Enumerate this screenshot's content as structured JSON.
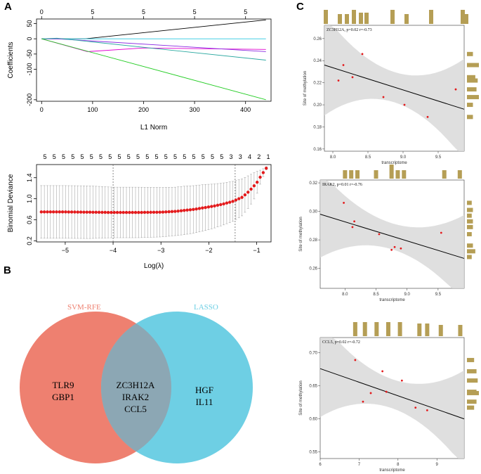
{
  "panels": {
    "A": "A",
    "B": "B",
    "C": "C"
  },
  "chart_data": [
    {
      "id": "lasso-coef",
      "type": "line",
      "title": "",
      "xlabel": "L1 Norm",
      "ylabel": "Coefficients",
      "xlim": [
        -10,
        450
      ],
      "ylim": [
        -205,
        65
      ],
      "x_ticks": [
        0,
        100,
        200,
        300,
        400
      ],
      "y_ticks": [
        -200,
        -100,
        -50,
        0,
        50
      ],
      "top_ticks": [
        {
          "x": 0,
          "label": "0"
        },
        {
          "x": 100,
          "label": "5"
        },
        {
          "x": 200,
          "label": "5"
        },
        {
          "x": 300,
          "label": "5"
        },
        {
          "x": 400,
          "label": "5"
        }
      ],
      "series": [
        {
          "name": "black",
          "color": "#000000",
          "points": [
            [
              0,
              0
            ],
            [
              85,
              0
            ],
            [
              440,
              62
            ]
          ]
        },
        {
          "name": "cyan",
          "color": "#29c7e0",
          "points": [
            [
              0,
              0
            ],
            [
              440,
              0
            ]
          ]
        },
        {
          "name": "magenta",
          "color": "#e000d0",
          "points": [
            [
              0,
              0
            ],
            [
              90,
              -42
            ],
            [
              200,
              -30
            ],
            [
              440,
              -35
            ]
          ]
        },
        {
          "name": "purple",
          "color": "#8a2be2",
          "points": [
            [
              0,
              0
            ],
            [
              30,
              0
            ],
            [
              440,
              -42
            ]
          ]
        },
        {
          "name": "teal",
          "color": "#2aa8a0",
          "points": [
            [
              0,
              0
            ],
            [
              30,
              2
            ],
            [
              440,
              -70
            ]
          ]
        },
        {
          "name": "green",
          "color": "#22cc22",
          "points": [
            [
              0,
              0
            ],
            [
              440,
              -200
            ]
          ]
        }
      ]
    },
    {
      "id": "lasso-cv",
      "type": "scatter",
      "title": "",
      "xlabel": "Log(λ)",
      "ylabel": "Binomial Deviance",
      "xlim": [
        -5.6,
        -0.7
      ],
      "ylim": [
        0.18,
        1.65
      ],
      "x_ticks": [
        -5,
        -4,
        -3,
        -2,
        -1
      ],
      "y_ticks": [
        0.2,
        0.6,
        1.0,
        1.4
      ],
      "top_ticks_labels": [
        "5",
        "5",
        "5",
        "5",
        "5",
        "5",
        "5",
        "5",
        "5",
        "5",
        "5",
        "5",
        "5",
        "5",
        "5",
        "5",
        "5",
        "5",
        "5",
        "5",
        "3",
        "3",
        "4",
        "2",
        "1"
      ],
      "vlines": [
        -4.0,
        -1.45
      ],
      "points": [
        {
          "x": -5.5,
          "y": 0.75,
          "err": 0.5
        },
        {
          "x": -5.0,
          "y": 0.75,
          "err": 0.5
        },
        {
          "x": -4.5,
          "y": 0.745,
          "err": 0.5
        },
        {
          "x": -4.0,
          "y": 0.74,
          "err": 0.48
        },
        {
          "x": -3.5,
          "y": 0.74,
          "err": 0.48
        },
        {
          "x": -3.0,
          "y": 0.745,
          "err": 0.47
        },
        {
          "x": -2.7,
          "y": 0.76,
          "err": 0.46
        },
        {
          "x": -2.5,
          "y": 0.78,
          "err": 0.46
        },
        {
          "x": -2.3,
          "y": 0.8,
          "err": 0.45
        },
        {
          "x": -2.1,
          "y": 0.83,
          "err": 0.44
        },
        {
          "x": -1.9,
          "y": 0.86,
          "err": 0.42
        },
        {
          "x": -1.7,
          "y": 0.9,
          "err": 0.4
        },
        {
          "x": -1.5,
          "y": 0.95,
          "err": 0.38
        },
        {
          "x": -1.3,
          "y": 1.03,
          "err": 0.35
        },
        {
          "x": -1.15,
          "y": 1.15,
          "err": 0.3
        },
        {
          "x": -1.0,
          "y": 1.3,
          "err": 0.22
        },
        {
          "x": -0.9,
          "y": 1.45,
          "err": 0.1
        },
        {
          "x": -0.8,
          "y": 1.58,
          "err": 0.03
        }
      ]
    },
    {
      "id": "zc3h12a",
      "type": "scatter",
      "annotation": "ZC3H12A, p=0.02 r=-0.73",
      "xlabel": "transcriptome",
      "ylabel": "Site of methylation",
      "xlim": [
        7.88,
        9.87
      ],
      "ylim": [
        0.158,
        0.272
      ],
      "x_ticks": [
        8.0,
        8.5,
        9.0,
        9.5
      ],
      "x_tick_labels": [
        "8.0",
        "8.5",
        "9.0",
        "9.5"
      ],
      "y_ticks": [
        0.16,
        0.18,
        0.2,
        0.22,
        0.24,
        0.26
      ],
      "y_tick_labels": [
        "0.16",
        "0.18",
        "0.20",
        "0.22",
        "0.24",
        "0.26"
      ],
      "fit_line": [
        [
          7.88,
          0.236
        ],
        [
          9.87,
          0.196
        ]
      ],
      "points": [
        [
          8.08,
          0.222
        ],
        [
          8.15,
          0.236
        ],
        [
          8.28,
          0.225
        ],
        [
          8.42,
          0.246
        ],
        [
          8.72,
          0.207
        ],
        [
          9.02,
          0.2
        ],
        [
          9.35,
          0.189
        ],
        [
          9.75,
          0.214
        ]
      ],
      "top_hist": [
        [
          7.9,
          1.0
        ],
        [
          8.1,
          0.7
        ],
        [
          8.2,
          0.7
        ],
        [
          8.3,
          1.0
        ],
        [
          8.4,
          0.8
        ],
        [
          8.48,
          0.8
        ],
        [
          8.85,
          1.0
        ],
        [
          9.05,
          0.7
        ],
        [
          9.4,
          1.0
        ],
        [
          9.85,
          1.0
        ],
        [
          9.9,
          0.7
        ]
      ],
      "right_hist": [
        [
          0.189,
          0.5
        ],
        [
          0.2,
          0.5
        ],
        [
          0.207,
          1.0
        ],
        [
          0.214,
          0.8
        ],
        [
          0.222,
          0.9
        ],
        [
          0.225,
          0.7
        ],
        [
          0.236,
          1.0
        ],
        [
          0.246,
          0.5
        ]
      ]
    },
    {
      "id": "irak2",
      "type": "scatter",
      "annotation": "IRAK2, p=0.01 r=-0.76",
      "xlabel": "transcriptome",
      "ylabel": "Site of methylation",
      "xlim": [
        7.6,
        9.92
      ],
      "ylim": [
        0.246,
        0.322
      ],
      "x_ticks": [
        8.0,
        8.5,
        9.0,
        9.5
      ],
      "x_tick_labels": [
        "8.0",
        "8.5",
        "9.0",
        "9.5"
      ],
      "y_ticks": [
        0.26,
        0.28,
        0.3,
        0.32
      ],
      "y_tick_labels": [
        "0.26",
        "0.28",
        "0.30",
        "0.32"
      ],
      "fit_line": [
        [
          7.6,
          0.298
        ],
        [
          9.92,
          0.267
        ]
      ],
      "points": [
        [
          7.98,
          0.306
        ],
        [
          8.12,
          0.289
        ],
        [
          8.15,
          0.293
        ],
        [
          8.75,
          0.273
        ],
        [
          8.8,
          0.275
        ],
        [
          8.9,
          0.274
        ],
        [
          8.55,
          0.284
        ],
        [
          9.55,
          0.285
        ]
      ],
      "top_hist": [
        [
          8.0,
          0.6
        ],
        [
          8.1,
          0.6
        ],
        [
          8.2,
          0.6
        ],
        [
          8.5,
          0.6
        ],
        [
          8.75,
          1.0
        ],
        [
          8.85,
          0.6
        ],
        [
          8.95,
          0.6
        ],
        [
          9.6,
          0.6
        ],
        [
          9.85,
          0.6
        ]
      ],
      "right_hist": [
        [
          0.268,
          0.4
        ],
        [
          0.272,
          0.7
        ],
        [
          0.276,
          0.5
        ],
        [
          0.284,
          0.4
        ],
        [
          0.289,
          0.5
        ],
        [
          0.293,
          0.5
        ],
        [
          0.297,
          0.4
        ],
        [
          0.301,
          0.5
        ],
        [
          0.306,
          0.4
        ]
      ]
    },
    {
      "id": "ccl5",
      "type": "scatter",
      "annotation": "CCL5, p=0.02 r=-0.72",
      "xlabel": "transcriptome",
      "ylabel": "Site of methylation",
      "xlim": [
        6.0,
        9.7
      ],
      "ylim": [
        0.54,
        0.723
      ],
      "x_ticks": [
        6,
        7,
        8,
        9
      ],
      "x_tick_labels": [
        "6",
        "7",
        "8",
        "9"
      ],
      "y_ticks": [
        0.55,
        0.6,
        0.65,
        0.7
      ],
      "y_tick_labels": [
        "0.55",
        "0.60",
        "0.65",
        "0.70"
      ],
      "fit_line": [
        [
          6.0,
          0.676
        ],
        [
          9.7,
          0.6
        ]
      ],
      "points": [
        [
          6.9,
          0.689
        ],
        [
          7.1,
          0.626
        ],
        [
          7.3,
          0.639
        ],
        [
          7.6,
          0.672
        ],
        [
          7.7,
          0.641
        ],
        [
          8.1,
          0.658
        ],
        [
          8.45,
          0.617
        ],
        [
          8.75,
          0.613
        ]
      ],
      "top_hist": [
        [
          6.9,
          1.0
        ],
        [
          7.15,
          1.0
        ],
        [
          7.45,
          1.0
        ],
        [
          7.75,
          1.0
        ],
        [
          8.05,
          1.0
        ],
        [
          8.55,
          0.9
        ],
        [
          8.75,
          0.9
        ],
        [
          9.1,
          0.8
        ],
        [
          9.6,
          0.8
        ]
      ],
      "right_hist": [
        [
          0.617,
          0.6
        ],
        [
          0.626,
          0.8
        ],
        [
          0.639,
          1.0
        ],
        [
          0.641,
          0.8
        ],
        [
          0.658,
          0.9
        ],
        [
          0.672,
          0.8
        ],
        [
          0.689,
          0.6
        ]
      ]
    }
  ],
  "venn": {
    "left_title": "SVM-RFE",
    "right_title": "LASSO",
    "left_only": [
      "TLR9",
      "GBP1"
    ],
    "shared": [
      "ZC3H12A",
      "IRAK2",
      "CCL5"
    ],
    "right_only": [
      "HGF",
      "IL11"
    ],
    "left_color": "#ee8070",
    "right_color": "#6ecfe4",
    "overlap_color": "#8ca7b4"
  }
}
